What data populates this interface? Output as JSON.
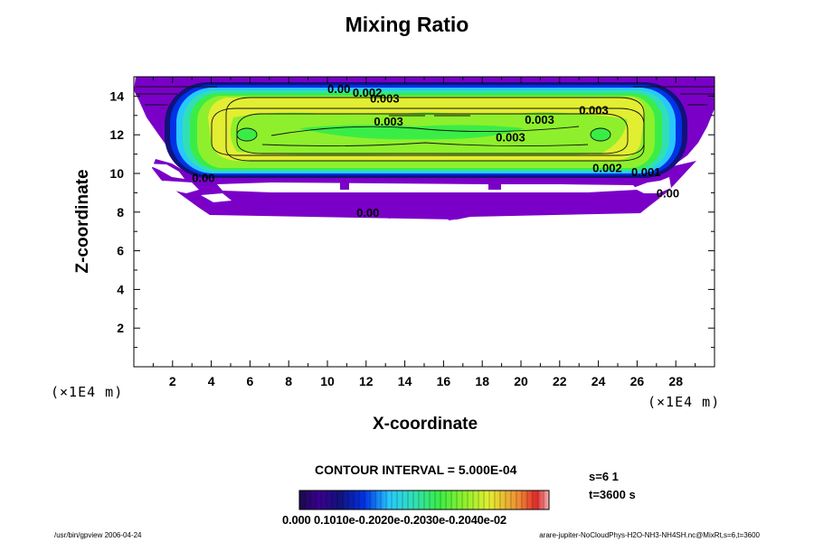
{
  "chart_data": {
    "type": "contour",
    "title": "Mixing Ratio",
    "xlabel": "X-coordinate",
    "ylabel": "Z-coordinate",
    "x_unit": "(×1E4 m)",
    "z_unit": "(×1E4 m)",
    "xlim": [
      0,
      30
    ],
    "ylim": [
      0,
      15
    ],
    "x_ticks": [
      2,
      4,
      6,
      8,
      10,
      12,
      14,
      16,
      18,
      20,
      22,
      24,
      26,
      28
    ],
    "y_ticks": [
      2,
      4,
      6,
      8,
      10,
      12,
      14
    ],
    "contour_interval": "CONTOUR INTERVAL = 5.000E-04",
    "colorbar_labels": "0.000 0.1010e-0.2020e-0.2030e-0.2040e-02",
    "colorbar_range": [
      0,
      0.0045
    ],
    "contour_labels": [
      {
        "text": "0.00",
        "x": 10.0,
        "z": 14.4
      },
      {
        "text": "0.002",
        "x": 11.3,
        "z": 14.2
      },
      {
        "text": "0.003",
        "x": 12.2,
        "z": 13.9
      },
      {
        "text": "0.003",
        "x": 12.4,
        "z": 12.7
      },
      {
        "text": "0.003",
        "x": 23.0,
        "z": 13.3
      },
      {
        "text": "0.003",
        "x": 20.2,
        "z": 12.8
      },
      {
        "text": "0.003",
        "x": 18.7,
        "z": 11.9
      },
      {
        "text": "0.00",
        "x": 3.0,
        "z": 9.8
      },
      {
        "text": "0.002",
        "x": 23.7,
        "z": 10.3
      },
      {
        "text": "0.001",
        "x": 25.7,
        "z": 10.1
      },
      {
        "text": "0.00",
        "x": 27.0,
        "z": 9.0
      },
      {
        "text": "0.00",
        "x": 11.5,
        "z": 8.0
      }
    ]
  },
  "run_info": {
    "s_value": "s=6 1",
    "t_value": "t=3600 s"
  },
  "footer": {
    "left": "/usr/bin/gpview 2006-04-24",
    "right": "arare-jupiter-NoCloudPhys-H2O-NH3-NH4SH.nc@MixRt,s=6,t=3600"
  },
  "colors": {
    "purple": "#7a00c8",
    "navy": "#12127a",
    "blue": "#0032e6",
    "cyan": "#28c8ff",
    "teal": "#30e0b4",
    "green": "#3aed46",
    "lime": "#8ef02c",
    "yellow": "#e2ee32",
    "red": "#e02a2a"
  }
}
